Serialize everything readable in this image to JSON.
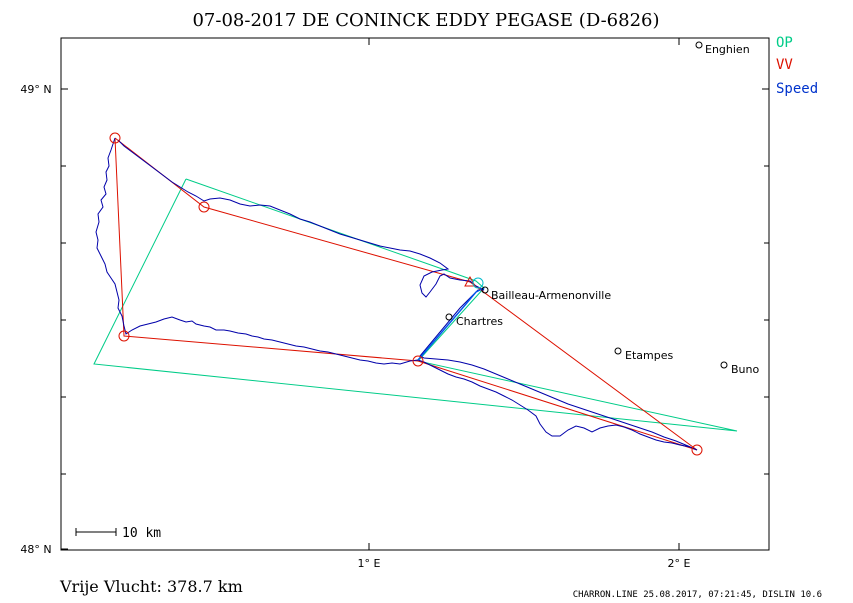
{
  "header": {
    "title": "07-08-2017   DE CONINCK EDDY   PEGASE (D-6826)"
  },
  "legend": [
    {
      "label": "OP",
      "color": "#00cc88"
    },
    {
      "label": "VV",
      "color": "#dd1100"
    },
    {
      "label": "Speed",
      "color": "#0033cc"
    }
  ],
  "axes": {
    "lat_labels": [
      "49° N",
      "48° N"
    ],
    "lon_labels": [
      "1° E",
      "2° E"
    ]
  },
  "scale_bar": {
    "label": "10  km"
  },
  "places": [
    {
      "name": "Enghien"
    },
    {
      "name": "Bailleau-Armenonville"
    },
    {
      "name": "Chartres"
    },
    {
      "name": "Etampes"
    },
    {
      "name": "Buno"
    }
  ],
  "footer": {
    "distance": "Vrije Vlucht:  378.7 km",
    "credit": "CHARRON.LINE 25.08.2017, 07:21:45, DISLIN 10.6"
  },
  "colors": {
    "op": "#00cc88",
    "vv": "#dd1100",
    "track": "#0000aa",
    "speed": "#0055ee",
    "frame": "#000000"
  }
}
